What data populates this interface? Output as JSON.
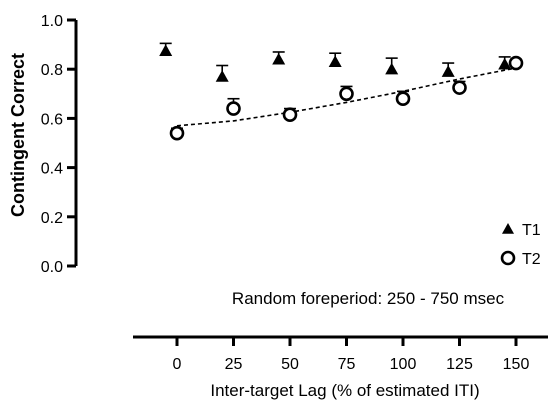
{
  "chart_data": {
    "type": "scatter",
    "ylabel": "Contingent Correct",
    "xlabel": "Inter-target Lag (% of estimated ITI)",
    "annotation": "Random foreperiod: 250 - 750 msec",
    "xlim": [
      -15,
      160
    ],
    "ylim": [
      0.0,
      1.0
    ],
    "x_ticks": [
      0,
      25,
      50,
      75,
      100,
      125,
      150
    ],
    "y_ticks": [
      0.0,
      0.2,
      0.4,
      0.6,
      0.8,
      1.0
    ],
    "y_tick_labels": [
      "0.0",
      "0.2",
      "0.4",
      "0.6",
      "0.8",
      "1.0"
    ],
    "legend_position": "bottom-right",
    "series": [
      {
        "name": "T1",
        "marker": "filled-triangle",
        "color": "#000000",
        "points": [
          {
            "x": -5,
            "y": 0.875,
            "err": 0.03
          },
          {
            "x": 20,
            "y": 0.77,
            "err": 0.045
          },
          {
            "x": 45,
            "y": 0.84,
            "err": 0.03
          },
          {
            "x": 70,
            "y": 0.83,
            "err": 0.035
          },
          {
            "x": 95,
            "y": 0.8,
            "err": 0.045
          },
          {
            "x": 120,
            "y": 0.79,
            "err": 0.035
          },
          {
            "x": 145,
            "y": 0.82,
            "err": 0.03
          }
        ]
      },
      {
        "name": "T2",
        "marker": "open-circle",
        "color": "#000000",
        "points": [
          {
            "x": 0,
            "y": 0.54,
            "err": 0.02
          },
          {
            "x": 25,
            "y": 0.64,
            "err": 0.04
          },
          {
            "x": 50,
            "y": 0.615,
            "err": 0.025
          },
          {
            "x": 75,
            "y": 0.7,
            "err": 0.03
          },
          {
            "x": 100,
            "y": 0.68,
            "err": 0.03
          },
          {
            "x": 125,
            "y": 0.725,
            "err": 0.025
          },
          {
            "x": 150,
            "y": 0.825,
            "err": 0.015
          }
        ]
      }
    ],
    "fit_line": {
      "style": "dashed",
      "color": "#000000",
      "x": [
        0,
        25,
        50,
        75,
        100,
        125,
        150
      ],
      "y": [
        0.57,
        0.59,
        0.625,
        0.665,
        0.71,
        0.76,
        0.805
      ]
    }
  }
}
